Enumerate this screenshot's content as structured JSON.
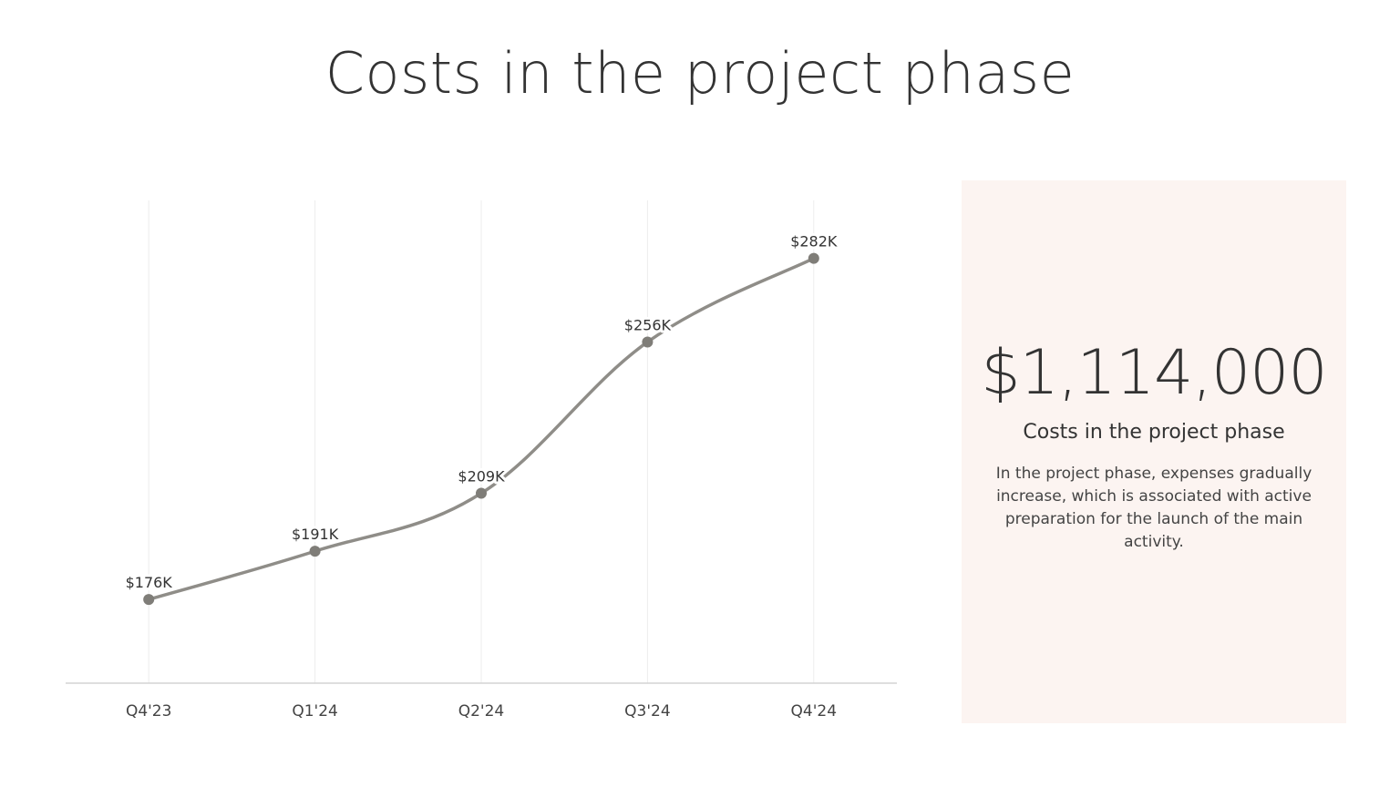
{
  "page": {
    "title": "Costs in the project phase"
  },
  "summary": {
    "total": "$1,114,000",
    "heading": "Costs in the project phase",
    "body": "In the project phase, expenses gradually increase, which is associated with active preparation for the launch of the main activity.",
    "background_color": "#fcf4f1"
  },
  "chart_data": {
    "type": "line",
    "categories": [
      "Q4'23",
      "Q1'24",
      "Q2'24",
      "Q3'24",
      "Q4'24"
    ],
    "series": [
      {
        "values": [
          176,
          191,
          209,
          256,
          282
        ],
        "data_labels": [
          "$176K",
          "$191K",
          "$209K",
          "$256K",
          "$282K"
        ],
        "color": "#8f8d88"
      }
    ],
    "ylim": [
      150,
      300
    ],
    "grid": "vertical",
    "smooth": true,
    "title": "",
    "xlabel": "",
    "ylabel": ""
  }
}
